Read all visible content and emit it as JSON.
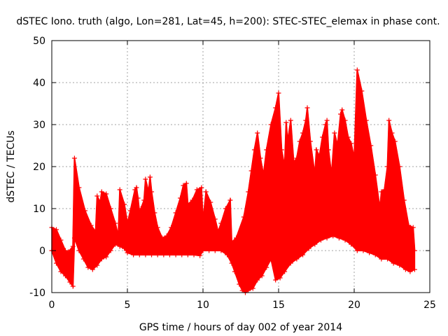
{
  "chart_data": {
    "type": "line",
    "title": "dSTEC Iono. truth (algo, Lon=281, Lat=45, h=200): STEC-STEC_elemax in phase cont.",
    "xlabel": "GPS time / hours of day 002 of year 2014",
    "ylabel": "dSTEC  / TECUs",
    "xlim": [
      0,
      25
    ],
    "ylim": [
      -10,
      50
    ],
    "xticks": [
      0,
      5,
      10,
      15,
      20,
      25
    ],
    "yticks": [
      -10,
      0,
      10,
      20,
      30,
      40,
      50
    ],
    "grid": true,
    "legend": "none",
    "series": [
      {
        "color": "#ff0000",
        "marker": "plus",
        "envelope_upper": [
          [
            0.0,
            5.5
          ],
          [
            0.3,
            5.0
          ],
          [
            0.6,
            2.5
          ],
          [
            0.9,
            0.0
          ],
          [
            1.1,
            -0.3
          ],
          [
            1.4,
            1.0
          ],
          [
            1.5,
            22.0
          ],
          [
            1.8,
            15.0
          ],
          [
            2.2,
            9.5
          ],
          [
            2.6,
            6.0
          ],
          [
            2.9,
            4.5
          ],
          [
            3.0,
            13.0
          ],
          [
            3.2,
            11.5
          ],
          [
            3.3,
            14.0
          ],
          [
            3.6,
            13.5
          ],
          [
            3.9,
            10.0
          ],
          [
            4.2,
            6.5
          ],
          [
            4.4,
            3.5
          ],
          [
            4.5,
            14.5
          ],
          [
            4.8,
            11.0
          ],
          [
            5.0,
            6.5
          ],
          [
            5.2,
            9.5
          ],
          [
            5.5,
            14.5
          ],
          [
            5.6,
            15.0
          ],
          [
            5.7,
            12.5
          ],
          [
            5.8,
            9.0
          ],
          [
            5.9,
            10.0
          ],
          [
            6.1,
            12.0
          ],
          [
            6.2,
            17.0
          ],
          [
            6.4,
            14.0
          ],
          [
            6.5,
            17.5
          ],
          [
            6.6,
            14.0
          ],
          [
            6.8,
            9.0
          ],
          [
            7.0,
            5.5
          ],
          [
            7.3,
            3.0
          ],
          [
            7.6,
            3.5
          ],
          [
            7.9,
            5.5
          ],
          [
            8.2,
            9.0
          ],
          [
            8.5,
            12.5
          ],
          [
            8.7,
            15.5
          ],
          [
            8.9,
            16.0
          ],
          [
            9.0,
            11.0
          ],
          [
            9.3,
            12.0
          ],
          [
            9.6,
            14.5
          ],
          [
            9.9,
            15.0
          ],
          [
            10.0,
            7.0
          ],
          [
            10.2,
            14.0
          ],
          [
            10.5,
            11.5
          ],
          [
            10.8,
            7.5
          ],
          [
            11.0,
            4.5
          ],
          [
            11.2,
            6.5
          ],
          [
            11.5,
            10.0
          ],
          [
            11.8,
            12.0
          ],
          [
            11.9,
            2.0
          ],
          [
            12.2,
            3.0
          ],
          [
            12.7,
            8.0
          ],
          [
            13.0,
            14.0
          ],
          [
            13.2,
            19.0
          ],
          [
            13.4,
            24.0
          ],
          [
            13.6,
            28.0
          ],
          [
            13.8,
            22.0
          ],
          [
            14.0,
            18.0
          ],
          [
            14.2,
            24.0
          ],
          [
            14.5,
            30.0
          ],
          [
            14.8,
            34.0
          ],
          [
            15.0,
            37.5
          ],
          [
            15.2,
            24.0
          ],
          [
            15.4,
            20.0
          ],
          [
            15.5,
            30.5
          ],
          [
            15.6,
            26.0
          ],
          [
            15.8,
            31.0
          ],
          [
            16.0,
            21.0
          ],
          [
            16.2,
            22.0
          ],
          [
            16.4,
            26.0
          ],
          [
            16.6,
            28.0
          ],
          [
            16.8,
            31.0
          ],
          [
            16.9,
            34.0
          ],
          [
            17.1,
            26.0
          ],
          [
            17.4,
            18.0
          ],
          [
            17.5,
            24.0
          ],
          [
            17.7,
            22.5
          ],
          [
            17.9,
            27.0
          ],
          [
            18.1,
            30.0
          ],
          [
            18.2,
            31.0
          ],
          [
            18.3,
            24.0
          ],
          [
            18.5,
            18.0
          ],
          [
            18.7,
            28.0
          ],
          [
            18.9,
            25.0
          ],
          [
            19.1,
            32.5
          ],
          [
            19.2,
            33.5
          ],
          [
            19.4,
            31.0
          ],
          [
            19.6,
            27.0
          ],
          [
            19.8,
            25.5
          ],
          [
            20.0,
            22.0
          ],
          [
            20.2,
            43.0
          ],
          [
            20.5,
            38.0
          ],
          [
            20.8,
            31.0
          ],
          [
            21.1,
            25.0
          ],
          [
            21.4,
            18.0
          ],
          [
            21.7,
            10.0
          ],
          [
            21.8,
            14.0
          ],
          [
            22.0,
            14.5
          ],
          [
            22.2,
            20.0
          ],
          [
            22.3,
            31.0
          ],
          [
            22.5,
            28.0
          ],
          [
            22.7,
            26.0
          ],
          [
            23.0,
            20.0
          ],
          [
            23.3,
            12.0
          ],
          [
            23.6,
            6.0
          ],
          [
            23.9,
            5.5
          ],
          [
            24.0,
            0.0
          ]
        ],
        "envelope_lower": [
          [
            0.0,
            0.0
          ],
          [
            0.3,
            -3.0
          ],
          [
            0.6,
            -5.0
          ],
          [
            0.9,
            -6.0
          ],
          [
            1.2,
            -7.5
          ],
          [
            1.4,
            -8.5
          ],
          [
            1.5,
            3.0
          ],
          [
            1.8,
            0.0
          ],
          [
            2.1,
            -2.0
          ],
          [
            2.4,
            -4.0
          ],
          [
            2.7,
            -4.5
          ],
          [
            3.0,
            -3.5
          ],
          [
            3.3,
            -2.0
          ],
          [
            3.6,
            -1.5
          ],
          [
            3.9,
            0.0
          ],
          [
            4.2,
            1.5
          ],
          [
            4.5,
            1.0
          ],
          [
            4.8,
            0.5
          ],
          [
            5.0,
            -0.5
          ],
          [
            5.4,
            -1.0
          ],
          [
            5.8,
            -1.0
          ],
          [
            6.2,
            -1.0
          ],
          [
            6.6,
            -1.0
          ],
          [
            7.0,
            -1.0
          ],
          [
            7.4,
            -1.0
          ],
          [
            7.8,
            -1.0
          ],
          [
            8.2,
            -1.0
          ],
          [
            8.6,
            -1.0
          ],
          [
            9.0,
            -1.0
          ],
          [
            9.4,
            -1.0
          ],
          [
            9.8,
            -1.2
          ],
          [
            10.0,
            0.0
          ],
          [
            10.4,
            0.0
          ],
          [
            10.8,
            0.0
          ],
          [
            11.2,
            0.0
          ],
          [
            11.6,
            -1.0
          ],
          [
            11.9,
            -3.0
          ],
          [
            12.1,
            -5.0
          ],
          [
            12.4,
            -8.0
          ],
          [
            12.6,
            -9.5
          ],
          [
            12.8,
            -10.0
          ],
          [
            13.0,
            -9.5
          ],
          [
            13.3,
            -9.0
          ],
          [
            13.6,
            -7.0
          ],
          [
            13.9,
            -6.0
          ],
          [
            14.2,
            -4.0
          ],
          [
            14.5,
            -2.0
          ],
          [
            14.8,
            -7.0
          ],
          [
            15.1,
            -6.5
          ],
          [
            15.4,
            -5.0
          ],
          [
            15.8,
            -3.0
          ],
          [
            16.2,
            -2.0
          ],
          [
            16.6,
            -1.0
          ],
          [
            17.0,
            0.5
          ],
          [
            17.4,
            1.5
          ],
          [
            17.8,
            2.5
          ],
          [
            18.2,
            3.0
          ],
          [
            18.6,
            3.5
          ],
          [
            19.0,
            3.0
          ],
          [
            19.4,
            2.5
          ],
          [
            19.8,
            1.5
          ],
          [
            20.2,
            0.0
          ],
          [
            20.6,
            0.0
          ],
          [
            21.0,
            -0.5
          ],
          [
            21.4,
            -1.0
          ],
          [
            21.8,
            -2.0
          ],
          [
            22.2,
            -2.0
          ],
          [
            22.6,
            -3.0
          ],
          [
            23.0,
            -3.5
          ],
          [
            23.4,
            -4.5
          ],
          [
            23.7,
            -5.0
          ],
          [
            24.0,
            -4.5
          ]
        ]
      }
    ]
  }
}
